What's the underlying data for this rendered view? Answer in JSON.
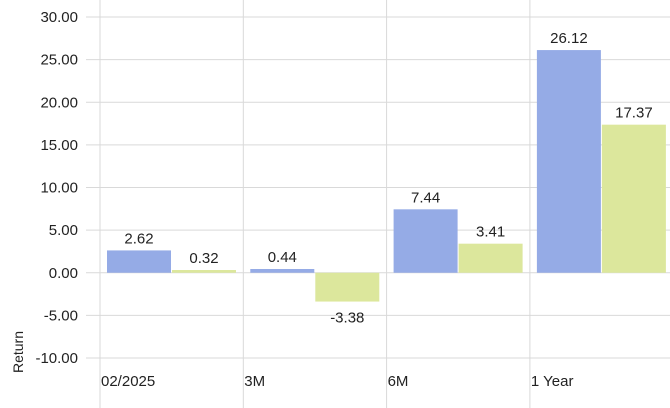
{
  "chart_data": {
    "type": "bar",
    "title": "",
    "xlabel": "",
    "ylabel": "Return",
    "ylim": [
      -10,
      30
    ],
    "yticks": [
      30,
      25,
      20,
      15,
      10,
      5,
      0,
      -5,
      -10
    ],
    "ytick_labels": [
      "30.00",
      "25.00",
      "20.00",
      "15.00",
      "10.00",
      "5.00",
      "0.00",
      "-5.00",
      "-10.00"
    ],
    "categories": [
      "02/2025",
      "3M",
      "6M",
      "1 Year"
    ],
    "grid": true,
    "legend": "none",
    "series": [
      {
        "color": "#95abe6",
        "values": [
          2.62,
          0.44,
          7.44,
          26.12
        ],
        "labels": [
          "2.62",
          "0.44",
          "7.44",
          "26.12"
        ]
      },
      {
        "color": "#dce79c",
        "values": [
          0.32,
          -3.38,
          3.41,
          17.37
        ],
        "labels": [
          "0.32",
          "-3.38",
          "3.41",
          "17.37"
        ]
      }
    ]
  }
}
